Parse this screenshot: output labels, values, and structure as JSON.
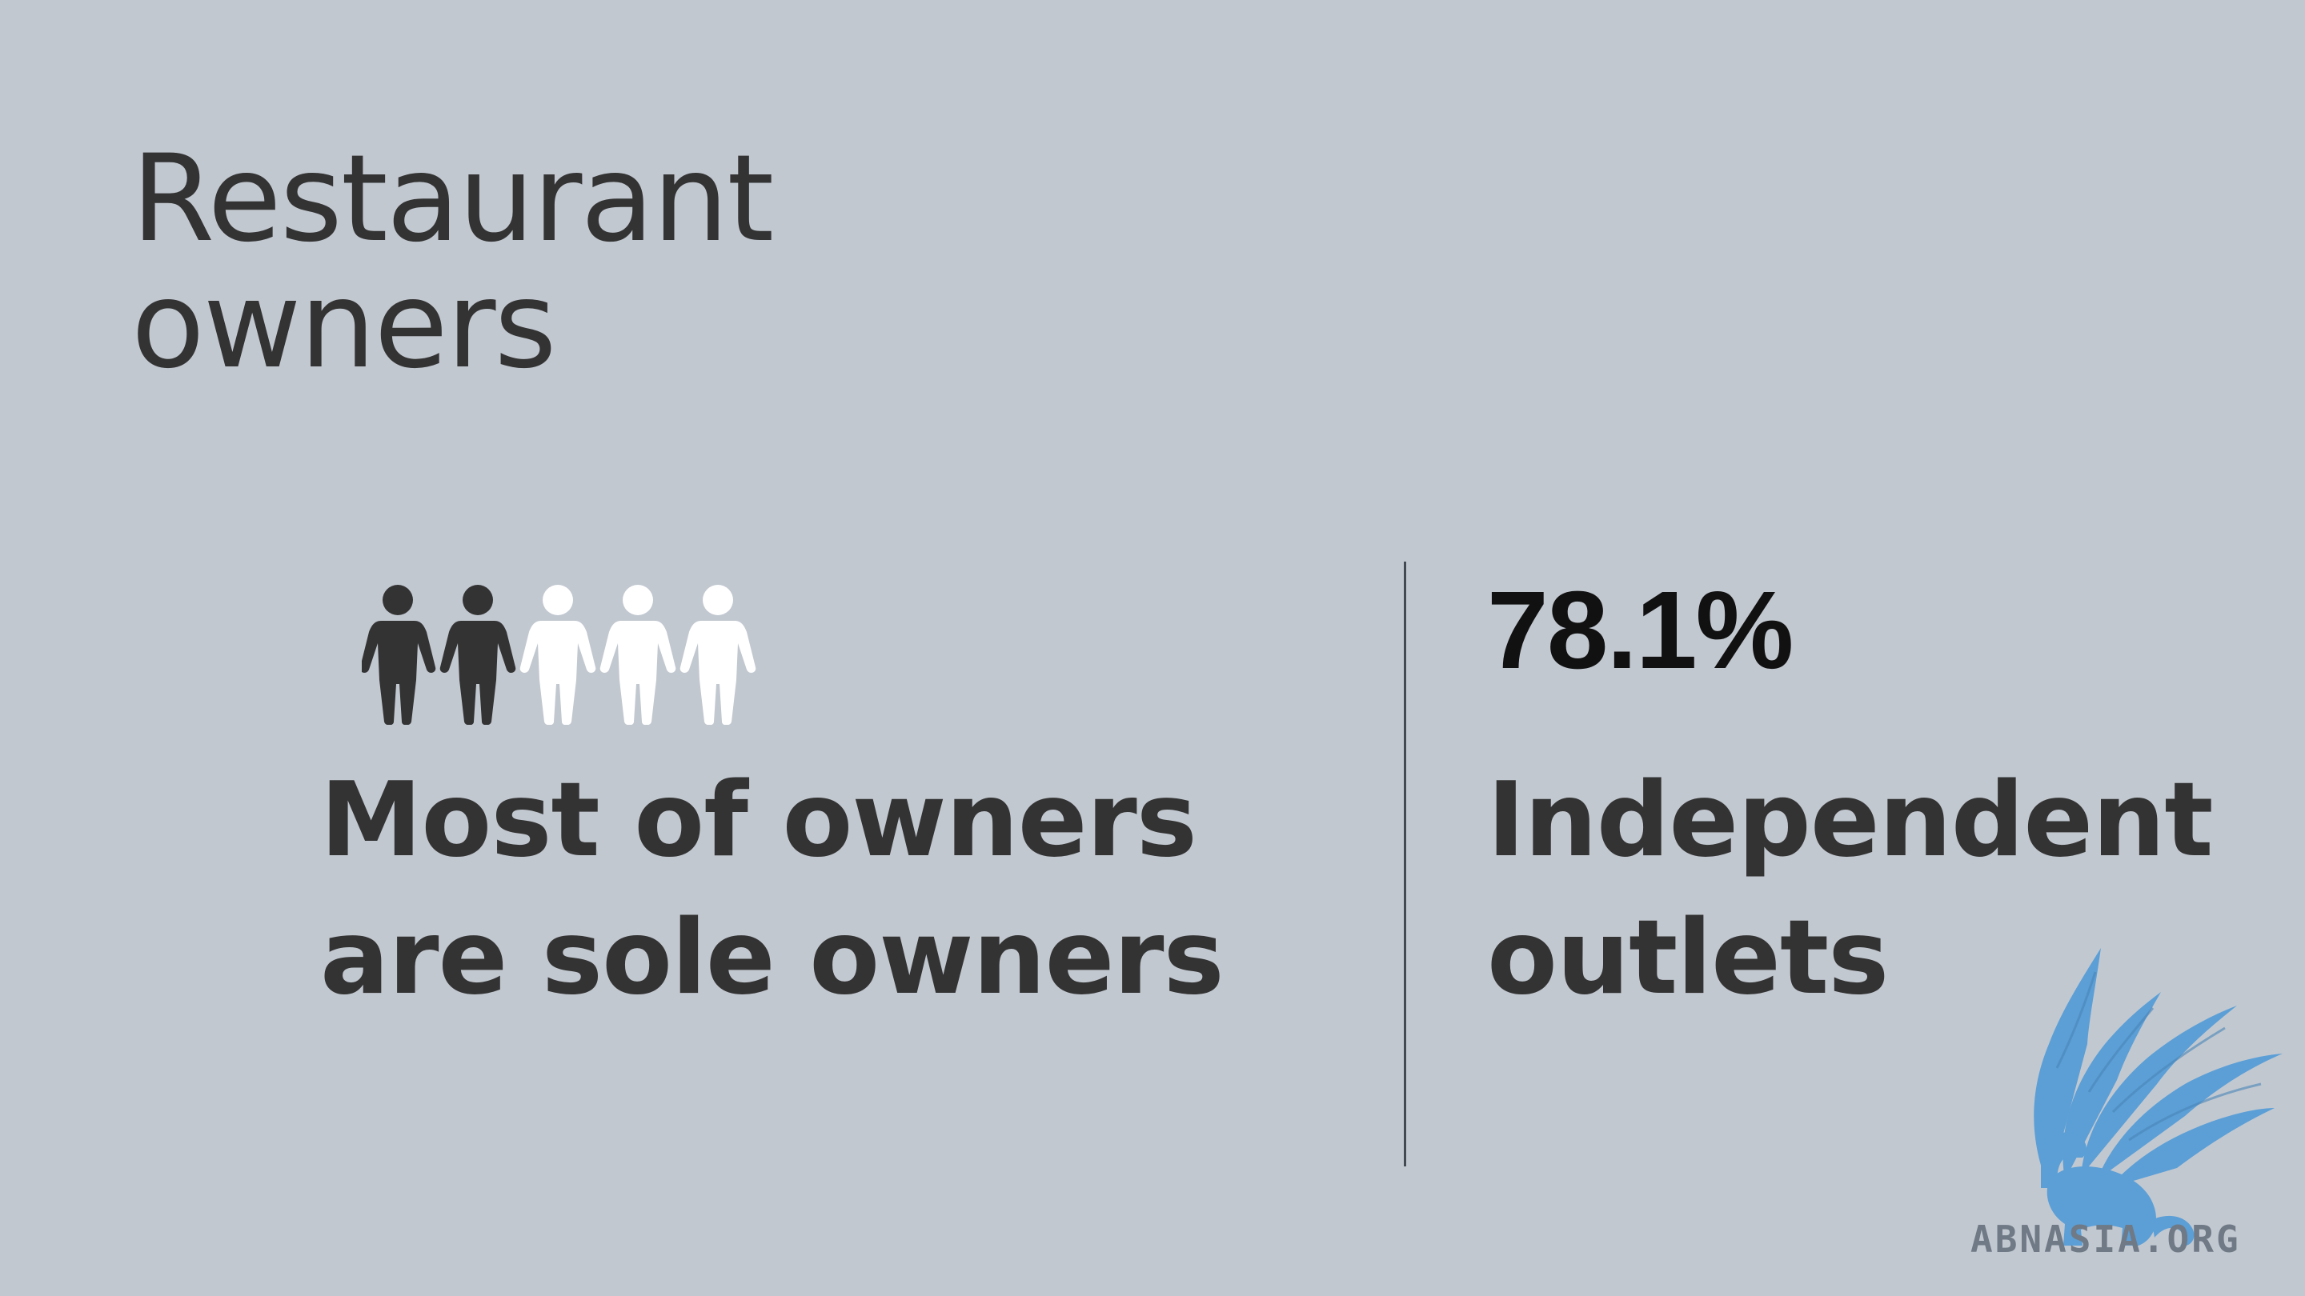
{
  "title": {
    "line1": "Restaurant",
    "line2": "owners"
  },
  "left_panel": {
    "icon_name": "people-icon",
    "people_filled": 2,
    "people_total": 5,
    "filled_color": "#333333",
    "empty_color": "#ffffff",
    "line1": "Most of owners",
    "line2": "are sole owners"
  },
  "right_panel": {
    "stat": "78.1%",
    "line1": "Independent",
    "line2": "outlets"
  },
  "logo": {
    "icon_name": "griffin-logo-icon",
    "text": "ABNASIA.ORG",
    "color": "#5b9fd6"
  }
}
